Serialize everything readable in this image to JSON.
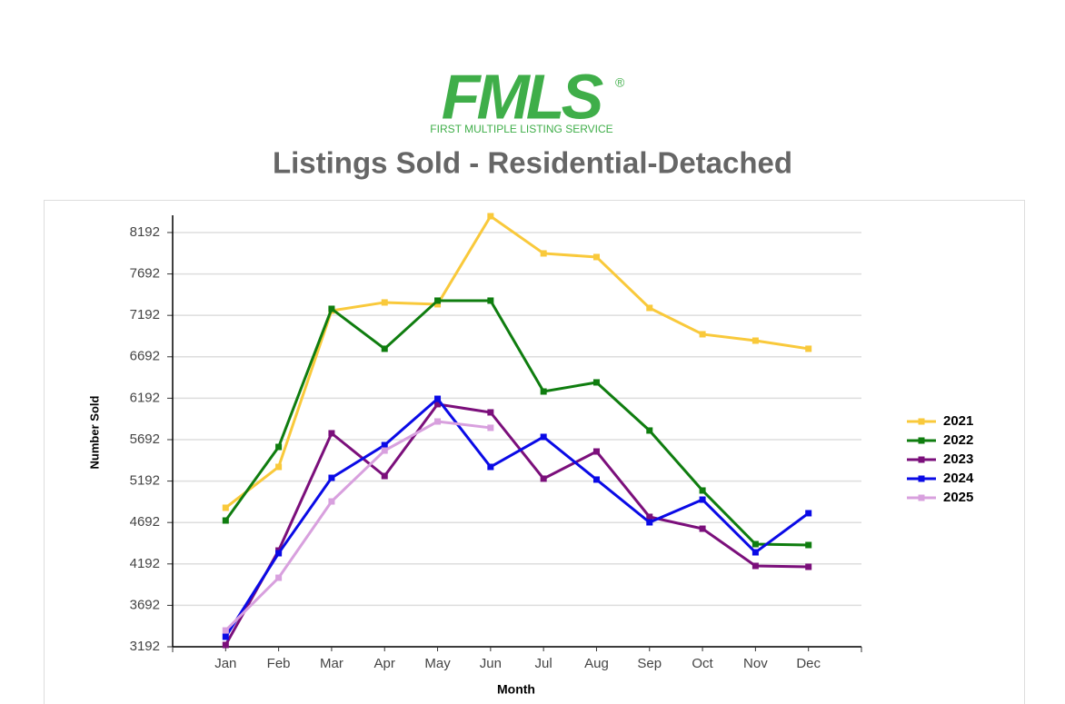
{
  "logo": {
    "text": "FMLS",
    "mark": "®",
    "tagline": "FIRST MULTIPLE LISTING SERVICE"
  },
  "chart_data": {
    "type": "line",
    "title": "Listings Sold - Residential-Detached",
    "x_label": "Month",
    "y_label": "Number Sold",
    "categories": [
      "Jan",
      "Feb",
      "Mar",
      "Apr",
      "May",
      "Jun",
      "Jul",
      "Aug",
      "Sep",
      "Oct",
      "Nov",
      "Dec"
    ],
    "series": [
      {
        "name": "2021",
        "color": "#f9c93b",
        "values": [
          4870,
          5363,
          7249,
          7348,
          7326,
          8389,
          7940,
          7896,
          7282,
          6964,
          6887,
          6789
        ]
      },
      {
        "name": "2022",
        "color": "#0f7d0f",
        "values": [
          4716,
          5604,
          7271,
          6789,
          7370,
          7370,
          6273,
          6383,
          5802,
          5078,
          4431,
          4420
        ]
      },
      {
        "name": "2023",
        "color": "#7b0f7b",
        "values": [
          3214,
          4354,
          5769,
          5253,
          6120,
          6021,
          5221,
          5549,
          4760,
          4617,
          4168,
          4157
        ]
      },
      {
        "name": "2024",
        "color": "#0a0ae6",
        "values": [
          3313,
          4321,
          5231,
          5626,
          6185,
          5363,
          5725,
          5210,
          4694,
          4968,
          4332,
          4804
        ]
      },
      {
        "name": "2025",
        "color": "#d8a0de",
        "values": [
          3389,
          4025,
          4946,
          5560,
          5911,
          5835,
          null,
          null,
          null,
          null,
          null,
          null
        ]
      }
    ],
    "ylim": [
      3192,
      8400
    ],
    "yticks": [
      3192,
      3692,
      4192,
      4692,
      5192,
      5692,
      6192,
      6692,
      7192,
      7692,
      8192
    ],
    "grid": true,
    "legend": "right"
  }
}
